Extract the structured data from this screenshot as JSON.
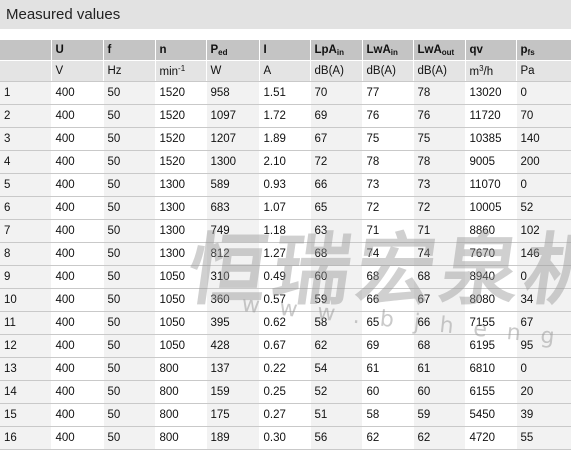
{
  "title": "Measured values",
  "header": [
    {
      "main": "",
      "sub": ""
    },
    {
      "main": "U",
      "sub": ""
    },
    {
      "main": "f",
      "sub": ""
    },
    {
      "main": "n",
      "sub": ""
    },
    {
      "main": "P",
      "sub": "ed"
    },
    {
      "main": "I",
      "sub": ""
    },
    {
      "main": "LpA",
      "sub": "in"
    },
    {
      "main": "LwA",
      "sub": "in"
    },
    {
      "main": "LwA",
      "sub": "out"
    },
    {
      "main": "qv",
      "sub": ""
    },
    {
      "main": "p",
      "sub": "fs"
    }
  ],
  "units": [
    {
      "main": "",
      "sup": "",
      "rest": ""
    },
    {
      "main": "V",
      "sup": "",
      "rest": ""
    },
    {
      "main": "Hz",
      "sup": "",
      "rest": ""
    },
    {
      "main": "min",
      "sup": "-1",
      "rest": ""
    },
    {
      "main": "W",
      "sup": "",
      "rest": ""
    },
    {
      "main": "A",
      "sup": "",
      "rest": ""
    },
    {
      "main": "dB(A)",
      "sup": "",
      "rest": ""
    },
    {
      "main": "dB(A)",
      "sup": "",
      "rest": ""
    },
    {
      "main": "dB(A)",
      "sup": "",
      "rest": ""
    },
    {
      "main": "m",
      "sup": "3",
      "rest": "/h"
    },
    {
      "main": "Pa",
      "sup": "",
      "rest": ""
    }
  ],
  "rows": [
    [
      "1",
      "400",
      "50",
      "1520",
      "958",
      "1.51",
      "70",
      "77",
      "78",
      "13020",
      "0"
    ],
    [
      "2",
      "400",
      "50",
      "1520",
      "1097",
      "1.72",
      "69",
      "76",
      "76",
      "11720",
      "70"
    ],
    [
      "3",
      "400",
      "50",
      "1520",
      "1207",
      "1.89",
      "67",
      "75",
      "75",
      "10385",
      "140"
    ],
    [
      "4",
      "400",
      "50",
      "1520",
      "1300",
      "2.10",
      "72",
      "78",
      "78",
      "9005",
      "200"
    ],
    [
      "5",
      "400",
      "50",
      "1300",
      "589",
      "0.93",
      "66",
      "73",
      "73",
      "11070",
      "0"
    ],
    [
      "6",
      "400",
      "50",
      "1300",
      "683",
      "1.07",
      "65",
      "72",
      "72",
      "10005",
      "52"
    ],
    [
      "7",
      "400",
      "50",
      "1300",
      "749",
      "1.18",
      "63",
      "71",
      "71",
      "8860",
      "102"
    ],
    [
      "8",
      "400",
      "50",
      "1300",
      "812",
      "1.27",
      "68",
      "74",
      "74",
      "7670",
      "146"
    ],
    [
      "9",
      "400",
      "50",
      "1050",
      "310",
      "0.49",
      "60",
      "68",
      "68",
      "8940",
      "0"
    ],
    [
      "10",
      "400",
      "50",
      "1050",
      "360",
      "0.57",
      "59",
      "66",
      "67",
      "8080",
      "34"
    ],
    [
      "11",
      "400",
      "50",
      "1050",
      "395",
      "0.62",
      "58",
      "65",
      "66",
      "7155",
      "67"
    ],
    [
      "12",
      "400",
      "50",
      "1050",
      "428",
      "0.67",
      "62",
      "69",
      "68",
      "6195",
      "95"
    ],
    [
      "13",
      "400",
      "50",
      "800",
      "137",
      "0.22",
      "54",
      "61",
      "61",
      "6810",
      "0"
    ],
    [
      "14",
      "400",
      "50",
      "800",
      "159",
      "0.25",
      "52",
      "60",
      "60",
      "6155",
      "20"
    ],
    [
      "15",
      "400",
      "50",
      "800",
      "175",
      "0.27",
      "51",
      "58",
      "59",
      "5450",
      "39"
    ],
    [
      "16",
      "400",
      "50",
      "800",
      "189",
      "0.30",
      "56",
      "62",
      "62",
      "4720",
      "55"
    ]
  ],
  "watermark": {
    "text": "恒瑞宏泉机电",
    "url": "www.bjhengrui.com.cn"
  }
}
